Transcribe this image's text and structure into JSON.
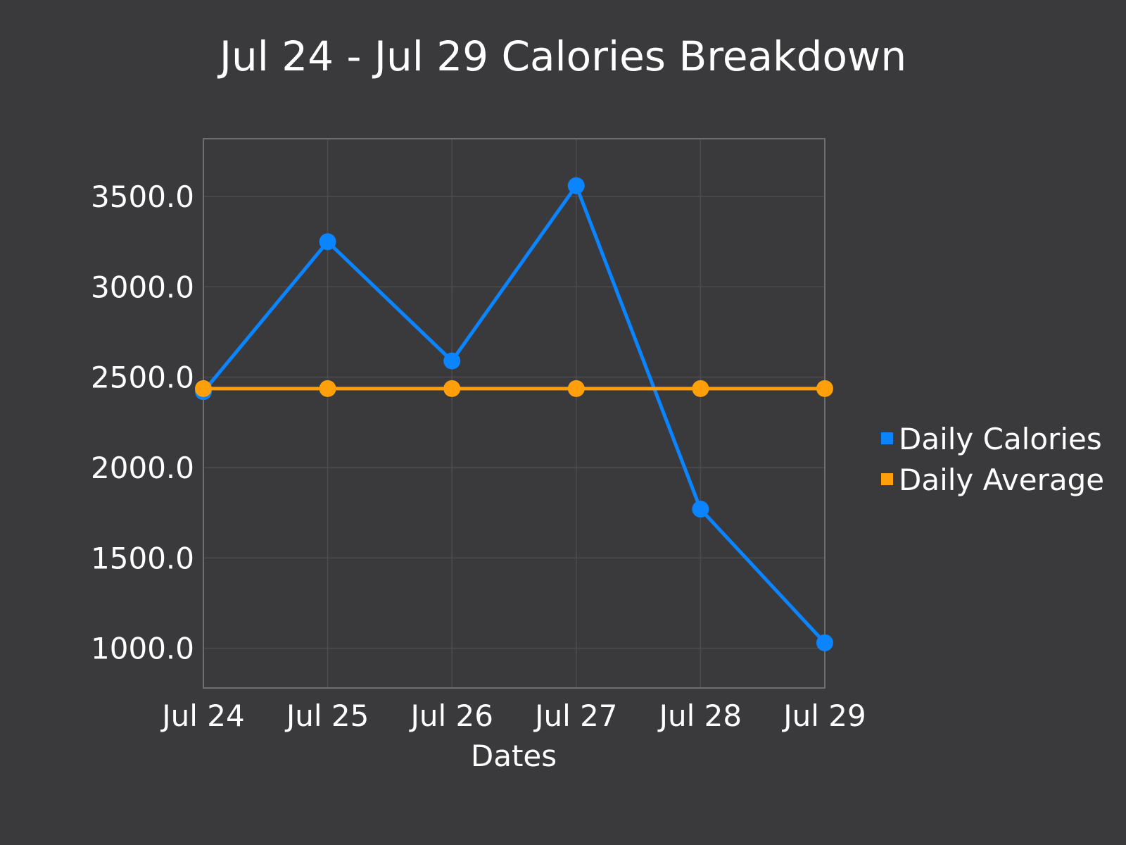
{
  "chart_data": {
    "type": "line",
    "title": "Jul 24 - Jul 29 Calories Breakdown",
    "xlabel": "Dates",
    "ylabel": "",
    "categories": [
      "Jul 24",
      "Jul 25",
      "Jul 26",
      "Jul 27",
      "Jul 28",
      "Jul 29"
    ],
    "series": [
      {
        "name": "Daily Calories",
        "color": "#0a84ff",
        "values": [
          2420,
          3250,
          2590,
          3560,
          1770,
          1030
        ]
      },
      {
        "name": "Daily Average",
        "color": "#ff9f0a",
        "values": [
          2437,
          2437,
          2437,
          2437,
          2437,
          2437
        ]
      }
    ],
    "ylim": [
      780,
      3820
    ],
    "yticks": [
      1000,
      1500,
      2000,
      2500,
      3000,
      3500
    ],
    "ytick_labels": [
      "1000.0",
      "1500.0",
      "2000.0",
      "2500.0",
      "3000.0",
      "3500.0"
    ],
    "grid": true,
    "legend_position": "right",
    "colors": {
      "background": "#3a3a3c",
      "plot_border": "#6e6e70",
      "grid": "#4c4c4e",
      "text": "#ffffff"
    }
  }
}
